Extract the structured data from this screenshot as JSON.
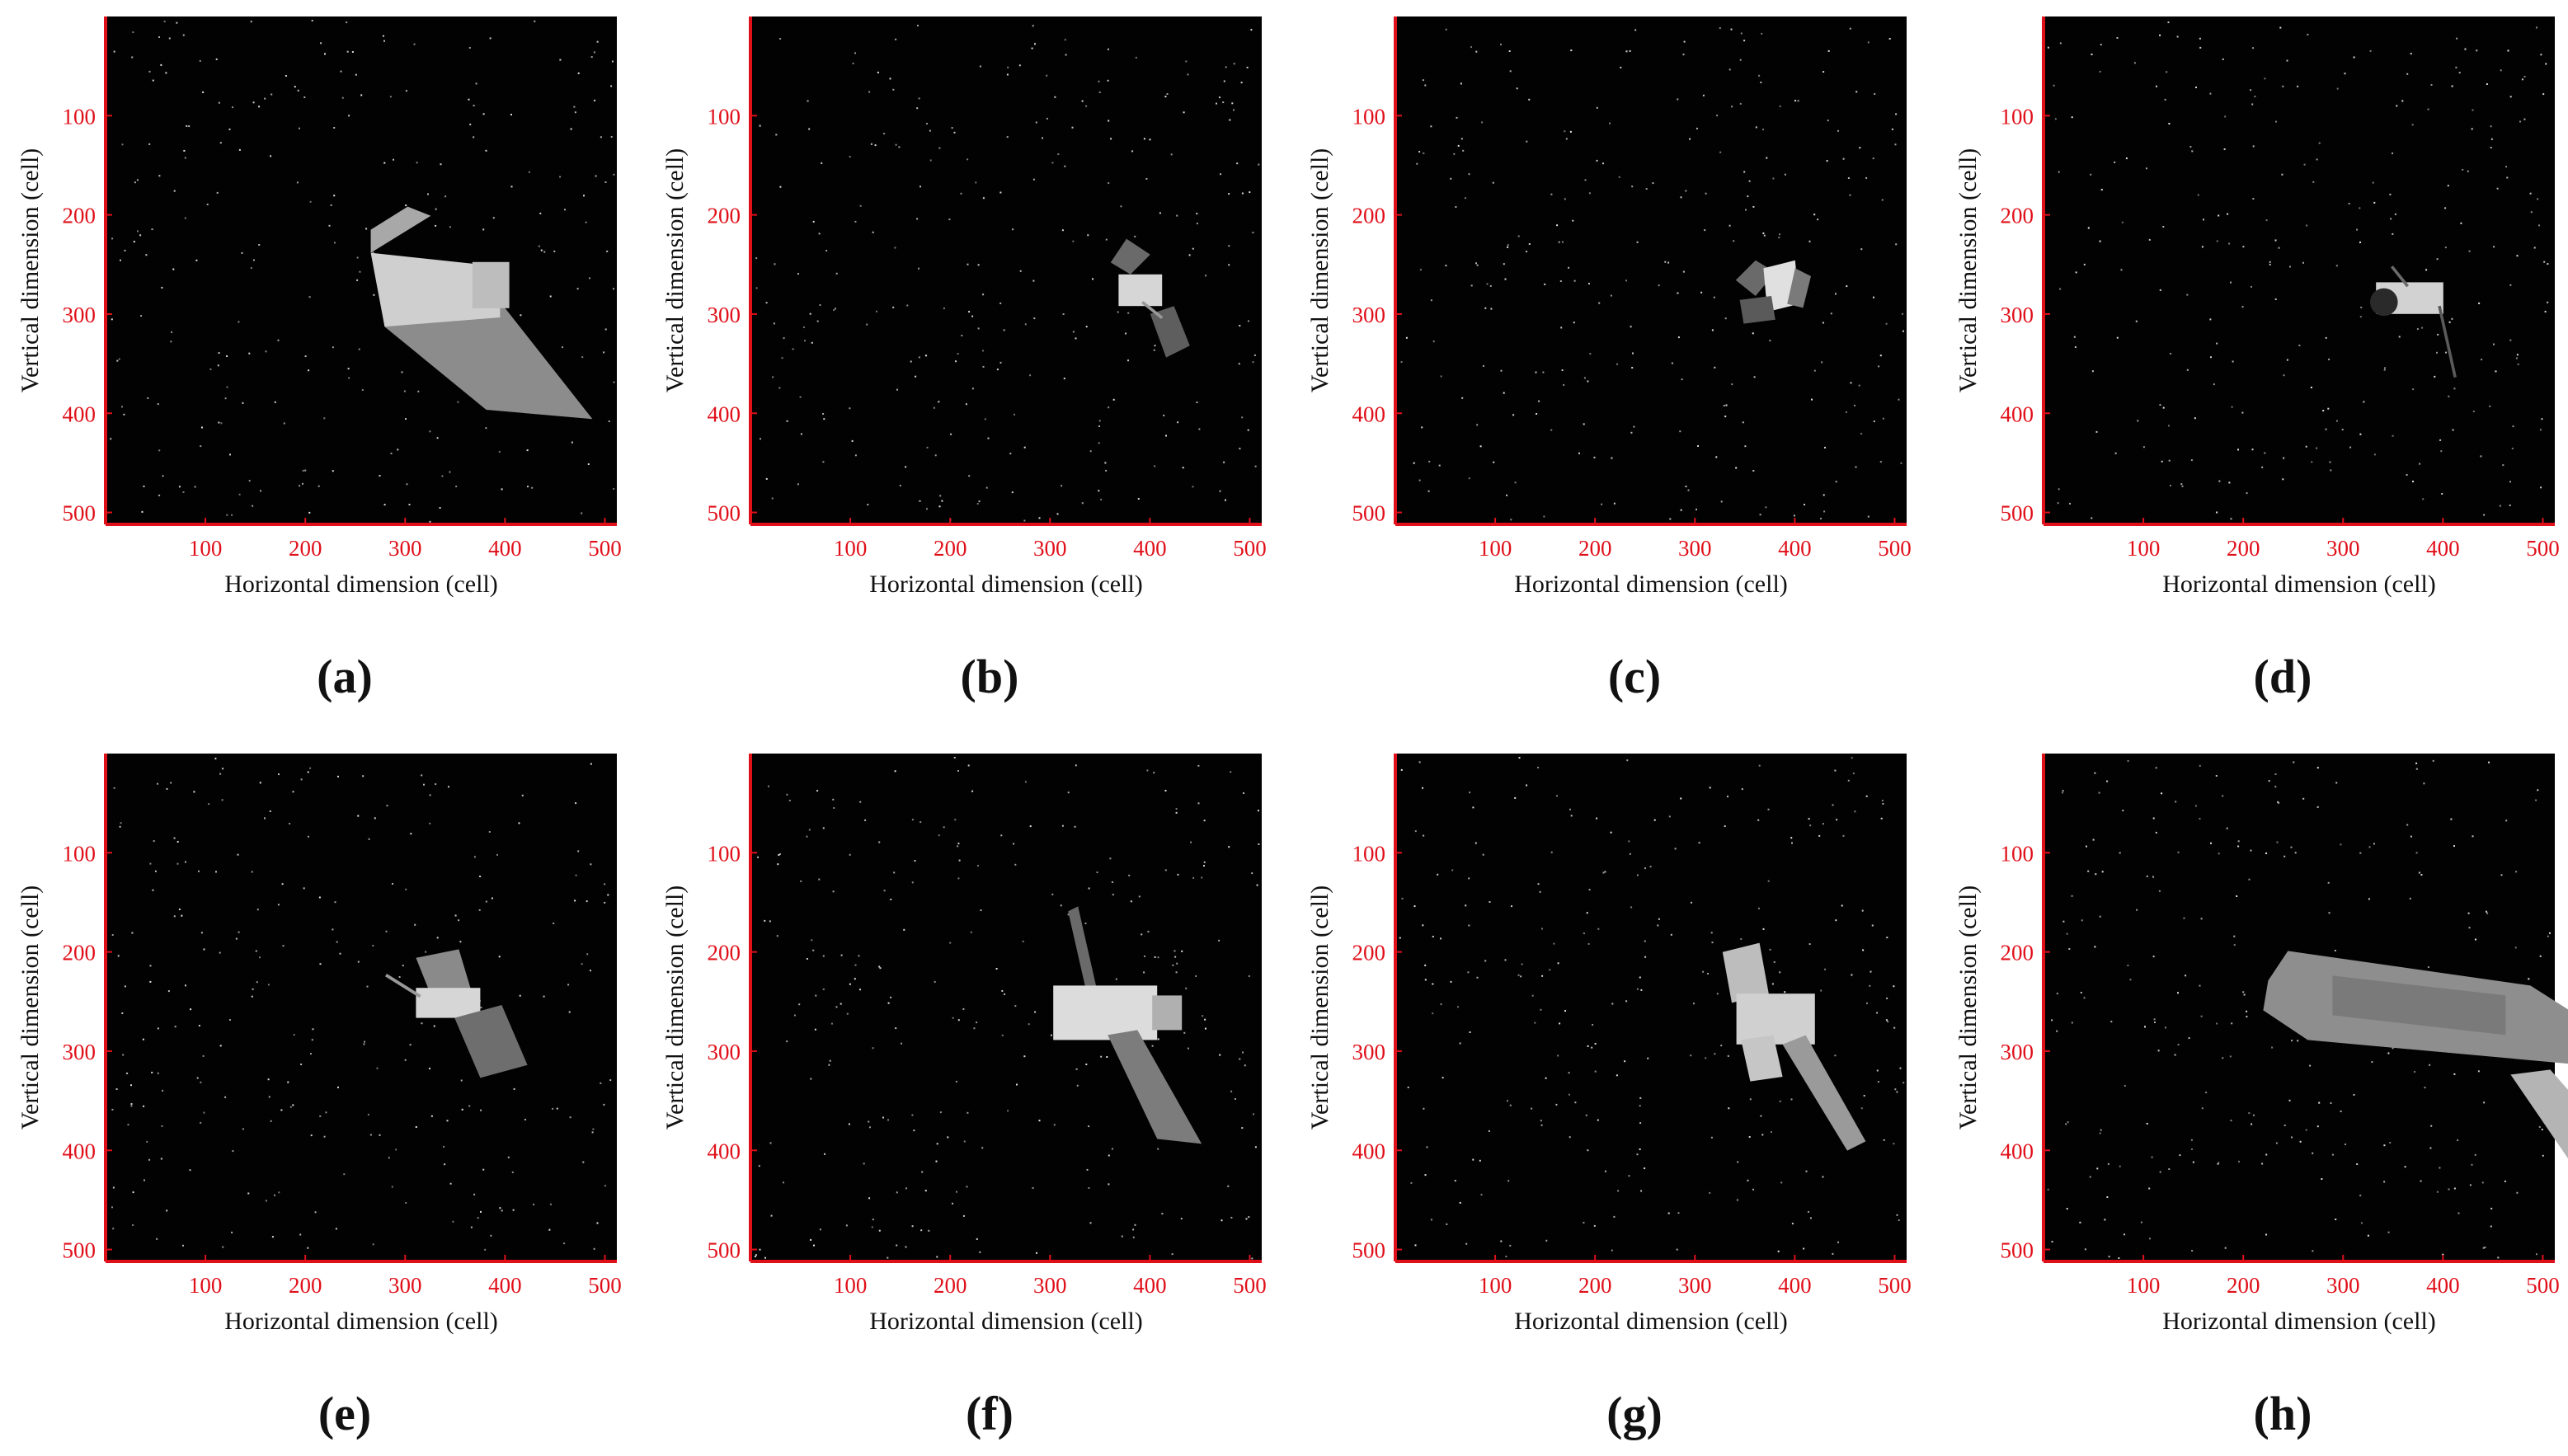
{
  "figure": {
    "x_axis_label": "Horizontal dimension (cell)",
    "y_axis_label": "Vertical dimension (cell)",
    "ticks": [
      "100",
      "200",
      "300",
      "400",
      "500"
    ],
    "colors": {
      "axis": "#e0101a",
      "tick_label": "#e0101a",
      "background": "#020202",
      "star": "#e6e6e6"
    },
    "panels": [
      {
        "label": "(a)"
      },
      {
        "label": "(b)"
      },
      {
        "label": "(c)"
      },
      {
        "label": "(d)"
      },
      {
        "label": "(e)"
      },
      {
        "label": "(f)"
      },
      {
        "label": "(g)"
      },
      {
        "label": "(h)"
      }
    ]
  }
}
